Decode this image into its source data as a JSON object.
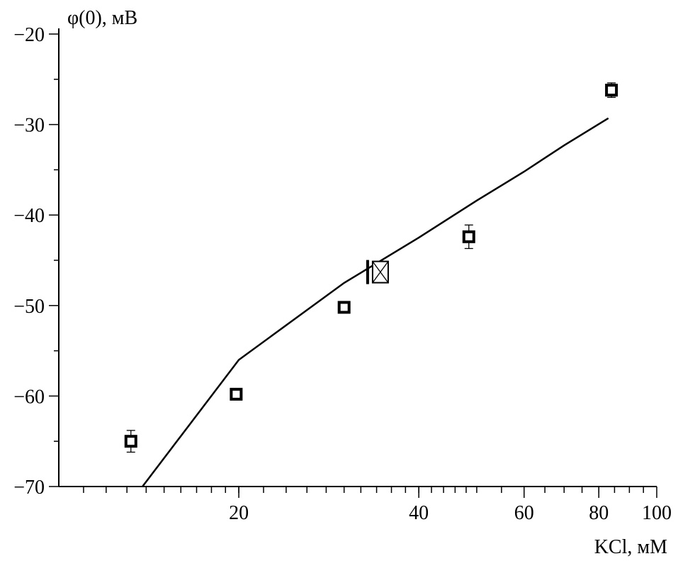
{
  "chart_data": {
    "type": "scatter",
    "xlabel": "KCl, мМ",
    "ylabel": "φ(0), мВ",
    "x_scale": "log",
    "xlim": [
      10,
      100
    ],
    "ylim": [
      -70,
      -20
    ],
    "x_tick_labels": [
      {
        "value": 20,
        "text": "20"
      },
      {
        "value": 40,
        "text": "40"
      },
      {
        "value": 60,
        "text": "60"
      },
      {
        "value": 80,
        "text": "80"
      },
      {
        "value": 100,
        "text": "100"
      }
    ],
    "y_tick_labels": [
      {
        "value": -20,
        "text": "−20"
      },
      {
        "value": -30,
        "text": "−30"
      },
      {
        "value": -40,
        "text": "−40"
      },
      {
        "value": -50,
        "text": "−50"
      },
      {
        "value": -60,
        "text": "−60"
      },
      {
        "value": -70,
        "text": "−70"
      }
    ],
    "grid": false,
    "series": [
      {
        "marker": "open-square",
        "points": [
          {
            "x": 13.2,
            "y": -65.0,
            "err": 1.2
          },
          {
            "x": 19.8,
            "y": -59.8,
            "err": 0.5
          },
          {
            "x": 30.0,
            "y": -50.2,
            "err": 0.4
          },
          {
            "x": 48.5,
            "y": -42.4,
            "err": 1.3
          },
          {
            "x": 84.0,
            "y": -26.2,
            "err": 0.8
          }
        ]
      },
      {
        "marker": "crossed-square",
        "points": [
          {
            "x": 34.5,
            "y": -46.3
          }
        ]
      },
      {
        "type": "line",
        "points": [
          {
            "x": 13.8,
            "y": -70.0
          },
          {
            "x": 20.0,
            "y": -56.0
          },
          {
            "x": 30.0,
            "y": -47.5
          },
          {
            "x": 40.0,
            "y": -42.5
          },
          {
            "x": 50.0,
            "y": -38.4
          },
          {
            "x": 60.0,
            "y": -35.2
          },
          {
            "x": 70.0,
            "y": -32.3
          },
          {
            "x": 83.0,
            "y": -29.3
          }
        ]
      }
    ]
  }
}
